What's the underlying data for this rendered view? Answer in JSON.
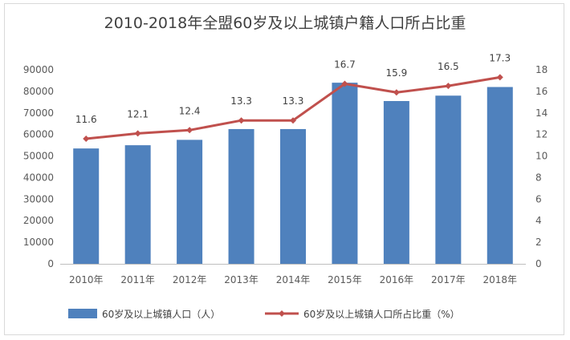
{
  "chart_data": {
    "type": "bar",
    "title": "2010-2018年全盟60岁及以上城镇户籍人口所占比重",
    "categories": [
      "2010年",
      "2011年",
      "2012年",
      "2013年",
      "2014年",
      "2015年",
      "2016年",
      "2017年",
      "2018年"
    ],
    "series": [
      {
        "name": "60岁及以上城镇人口（人）",
        "type": "bar",
        "axis": "left",
        "color": "#4f81bd",
        "values": [
          53500,
          55000,
          57500,
          62500,
          62500,
          84000,
          75500,
          78000,
          82000
        ]
      },
      {
        "name": "60岁及以上城镇人口所占比重（%）",
        "type": "line",
        "axis": "right",
        "color": "#c0504d",
        "values": [
          11.6,
          12.1,
          12.4,
          13.3,
          13.3,
          16.7,
          15.9,
          16.5,
          17.3
        ]
      }
    ],
    "y_left": {
      "ylim": [
        0,
        90000
      ],
      "ticks": [
        "0",
        "10000",
        "20000",
        "30000",
        "40000",
        "50000",
        "60000",
        "70000",
        "80000",
        "90000"
      ]
    },
    "y_right": {
      "ylim": [
        0,
        18
      ],
      "ticks": [
        "0",
        "2",
        "4",
        "6",
        "8",
        "10",
        "12",
        "14",
        "16",
        "18"
      ]
    },
    "grid": false,
    "legend_position": "bottom"
  }
}
